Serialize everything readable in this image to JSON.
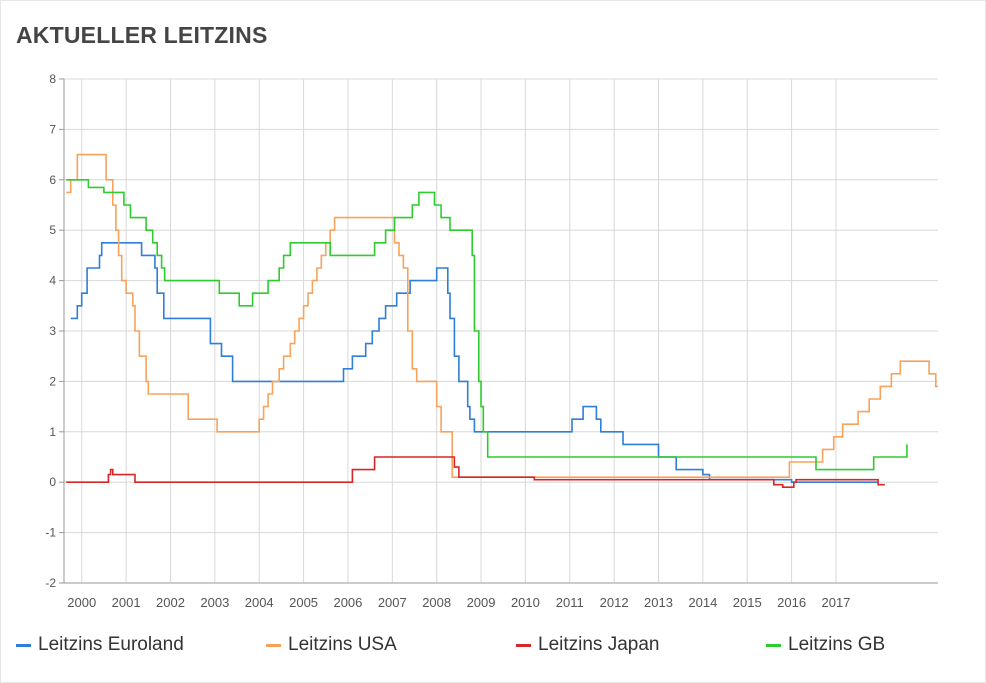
{
  "title": "AKTUELLER LEITZINS",
  "chart_data": {
    "type": "line",
    "step": true,
    "xlabel": "",
    "ylabel": "",
    "ylim": [
      -2,
      8
    ],
    "yticks": [
      -2,
      -1,
      0,
      1,
      2,
      3,
      4,
      5,
      6,
      7,
      8
    ],
    "xlim": [
      1999.6,
      2019.3
    ],
    "xticks": [
      2000,
      2001,
      2002,
      2003,
      2004,
      2005,
      2006,
      2007,
      2008,
      2009,
      2010,
      2011,
      2012,
      2013,
      2014,
      2015,
      2016,
      2017
    ],
    "grid": true,
    "legend": "bottom",
    "series": [
      {
        "name": "Leitzins Euroland",
        "color": "#2f7ed8",
        "points": [
          [
            1999.75,
            3.25
          ],
          [
            1999.9,
            3.5
          ],
          [
            2000.0,
            3.75
          ],
          [
            2000.12,
            4.25
          ],
          [
            2000.4,
            4.5
          ],
          [
            2000.45,
            4.75
          ],
          [
            2001.35,
            4.5
          ],
          [
            2001.65,
            4.25
          ],
          [
            2001.7,
            3.75
          ],
          [
            2001.85,
            3.25
          ],
          [
            2002.9,
            2.75
          ],
          [
            2003.15,
            2.5
          ],
          [
            2003.4,
            2.0
          ],
          [
            2005.9,
            2.25
          ],
          [
            2006.1,
            2.5
          ],
          [
            2006.4,
            2.75
          ],
          [
            2006.55,
            3.0
          ],
          [
            2006.7,
            3.25
          ],
          [
            2006.85,
            3.5
          ],
          [
            2007.1,
            3.75
          ],
          [
            2007.4,
            4.0
          ],
          [
            2008.0,
            4.25
          ],
          [
            2008.25,
            3.75
          ],
          [
            2008.3,
            3.25
          ],
          [
            2008.4,
            2.5
          ],
          [
            2008.5,
            2.0
          ],
          [
            2008.7,
            1.5
          ],
          [
            2008.75,
            1.25
          ],
          [
            2008.85,
            1.0
          ],
          [
            2011.05,
            1.25
          ],
          [
            2011.3,
            1.5
          ],
          [
            2011.6,
            1.25
          ],
          [
            2011.7,
            1.0
          ],
          [
            2012.0,
            1.0
          ],
          [
            2012.2,
            0.75
          ],
          [
            2013.0,
            0.5
          ],
          [
            2013.4,
            0.25
          ],
          [
            2014.0,
            0.15
          ],
          [
            2014.15,
            0.05
          ],
          [
            2016.0,
            0.0
          ],
          [
            2017.95,
            0.0
          ]
        ]
      },
      {
        "name": "Leitzins USA",
        "color": "#f7a35c",
        "points": [
          [
            1999.65,
            5.75
          ],
          [
            1999.75,
            6.0
          ],
          [
            1999.9,
            6.5
          ],
          [
            2000.5,
            6.5
          ],
          [
            2000.55,
            6.0
          ],
          [
            2000.7,
            5.5
          ],
          [
            2000.77,
            5.0
          ],
          [
            2000.83,
            4.5
          ],
          [
            2000.9,
            4.0
          ],
          [
            2001.0,
            3.75
          ],
          [
            2001.15,
            3.5
          ],
          [
            2001.2,
            3.0
          ],
          [
            2001.3,
            2.5
          ],
          [
            2001.45,
            2.0
          ],
          [
            2001.5,
            1.75
          ],
          [
            2002.4,
            1.25
          ],
          [
            2003.05,
            1.0
          ],
          [
            2003.55,
            1.0
          ],
          [
            2004.0,
            1.25
          ],
          [
            2004.1,
            1.5
          ],
          [
            2004.2,
            1.75
          ],
          [
            2004.3,
            2.0
          ],
          [
            2004.45,
            2.25
          ],
          [
            2004.55,
            2.5
          ],
          [
            2004.7,
            2.75
          ],
          [
            2004.8,
            3.0
          ],
          [
            2004.9,
            3.25
          ],
          [
            2005.0,
            3.5
          ],
          [
            2005.1,
            3.75
          ],
          [
            2005.2,
            4.0
          ],
          [
            2005.3,
            4.25
          ],
          [
            2005.4,
            4.5
          ],
          [
            2005.5,
            4.75
          ],
          [
            2005.6,
            5.0
          ],
          [
            2005.7,
            5.25
          ],
          [
            2006.95,
            5.25
          ],
          [
            2007.05,
            4.75
          ],
          [
            2007.15,
            4.5
          ],
          [
            2007.25,
            4.25
          ],
          [
            2007.35,
            3.0
          ],
          [
            2007.45,
            2.25
          ],
          [
            2007.55,
            2.0
          ],
          [
            2008.0,
            1.5
          ],
          [
            2008.1,
            1.0
          ],
          [
            2008.35,
            0.1
          ],
          [
            2015.95,
            0.4
          ],
          [
            2016.7,
            0.65
          ],
          [
            2016.95,
            0.9
          ],
          [
            2017.15,
            1.15
          ],
          [
            2017.5,
            1.4
          ],
          [
            2017.75,
            1.65
          ],
          [
            2018.0,
            1.9
          ],
          [
            2018.25,
            2.15
          ],
          [
            2018.45,
            2.4
          ],
          [
            2019.1,
            2.15
          ],
          [
            2019.25,
            1.9
          ],
          [
            2019.3,
            1.9
          ]
        ]
      },
      {
        "name": "Leitzins Japan",
        "color": "#d62728",
        "points": [
          [
            1999.65,
            0.0
          ],
          [
            2000.3,
            0.0
          ],
          [
            2000.6,
            0.15
          ],
          [
            2000.65,
            0.25
          ],
          [
            2000.7,
            0.15
          ],
          [
            2001.2,
            0.0
          ],
          [
            2006.1,
            0.25
          ],
          [
            2006.6,
            0.5
          ],
          [
            2008.4,
            0.3
          ],
          [
            2008.5,
            0.1
          ],
          [
            2010.2,
            0.05
          ],
          [
            2015.6,
            -0.05
          ],
          [
            2015.8,
            -0.1
          ],
          [
            2016.05,
            0.0
          ],
          [
            2016.1,
            0.05
          ],
          [
            2017.95,
            -0.05
          ],
          [
            2018.1,
            -0.05
          ]
        ]
      },
      {
        "name": "Leitzins GB",
        "color": "#2ecc2e",
        "points": [
          [
            1999.65,
            6.0
          ],
          [
            2000.15,
            5.85
          ],
          [
            2000.5,
            5.75
          ],
          [
            2000.95,
            5.5
          ],
          [
            2001.1,
            5.25
          ],
          [
            2001.45,
            5.0
          ],
          [
            2001.6,
            4.75
          ],
          [
            2001.7,
            4.5
          ],
          [
            2001.8,
            4.25
          ],
          [
            2001.87,
            4.0
          ],
          [
            2003.1,
            3.75
          ],
          [
            2003.55,
            3.5
          ],
          [
            2003.85,
            3.75
          ],
          [
            2004.2,
            4.0
          ],
          [
            2004.45,
            4.25
          ],
          [
            2004.55,
            4.5
          ],
          [
            2004.7,
            4.75
          ],
          [
            2005.6,
            4.5
          ],
          [
            2006.6,
            4.75
          ],
          [
            2006.85,
            5.0
          ],
          [
            2007.05,
            5.25
          ],
          [
            2007.45,
            5.5
          ],
          [
            2007.6,
            5.75
          ],
          [
            2007.95,
            5.5
          ],
          [
            2008.1,
            5.25
          ],
          [
            2008.3,
            5.0
          ],
          [
            2008.8,
            4.5
          ],
          [
            2008.85,
            3.0
          ],
          [
            2008.95,
            2.0
          ],
          [
            2009.0,
            1.5
          ],
          [
            2009.05,
            1.0
          ],
          [
            2009.15,
            0.5
          ],
          [
            2016.55,
            0.25
          ],
          [
            2017.85,
            0.5
          ],
          [
            2018.6,
            0.75
          ]
        ]
      }
    ]
  }
}
